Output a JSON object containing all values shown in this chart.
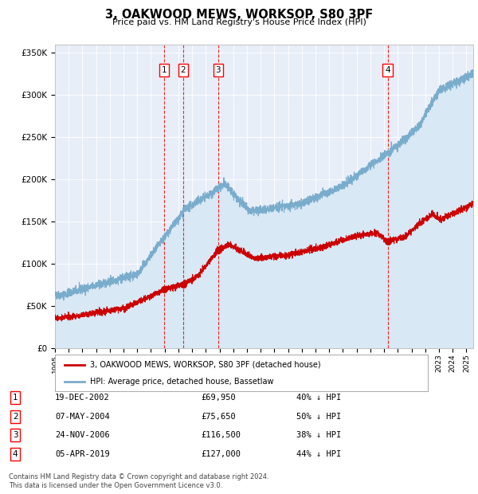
{
  "title": "3, OAKWOOD MEWS, WORKSOP, S80 3PF",
  "subtitle": "Price paid vs. HM Land Registry's House Price Index (HPI)",
  "ylim": [
    0,
    360000
  ],
  "yticks": [
    0,
    50000,
    100000,
    150000,
    200000,
    250000,
    300000,
    350000
  ],
  "ytick_labels": [
    "£0",
    "£50K",
    "£100K",
    "£150K",
    "£200K",
    "£250K",
    "£300K",
    "£350K"
  ],
  "background_color": "#ffffff",
  "plot_bg_color": "#e8eef8",
  "grid_color": "#ffffff",
  "red_line_color": "#cc0000",
  "blue_line_color": "#7aaccc",
  "blue_fill_color": "#d8e8f4",
  "transactions": [
    {
      "num": 1,
      "date": "19-DEC-2002",
      "price": 69950,
      "pct": "40%",
      "date_val": 2002.97
    },
    {
      "num": 2,
      "date": "07-MAY-2004",
      "price": 75650,
      "pct": "50%",
      "date_val": 2004.35
    },
    {
      "num": 3,
      "date": "24-NOV-2006",
      "price": 116500,
      "pct": "38%",
      "date_val": 2006.9
    },
    {
      "num": 4,
      "date": "05-APR-2019",
      "price": 127000,
      "pct": "44%",
      "date_val": 2019.26
    }
  ],
  "legend_entries": [
    "3, OAKWOOD MEWS, WORKSOP, S80 3PF (detached house)",
    "HPI: Average price, detached house, Bassetlaw"
  ],
  "footer_lines": [
    "Contains HM Land Registry data © Crown copyright and database right 2024.",
    "This data is licensed under the Open Government Licence v3.0."
  ],
  "x_start": 1995.0,
  "x_end": 2025.5,
  "xticks": [
    1995,
    1996,
    1997,
    1998,
    1999,
    2000,
    2001,
    2002,
    2003,
    2004,
    2005,
    2006,
    2007,
    2008,
    2009,
    2010,
    2011,
    2012,
    2013,
    2014,
    2015,
    2016,
    2017,
    2018,
    2019,
    2020,
    2021,
    2022,
    2023,
    2024,
    2025
  ]
}
